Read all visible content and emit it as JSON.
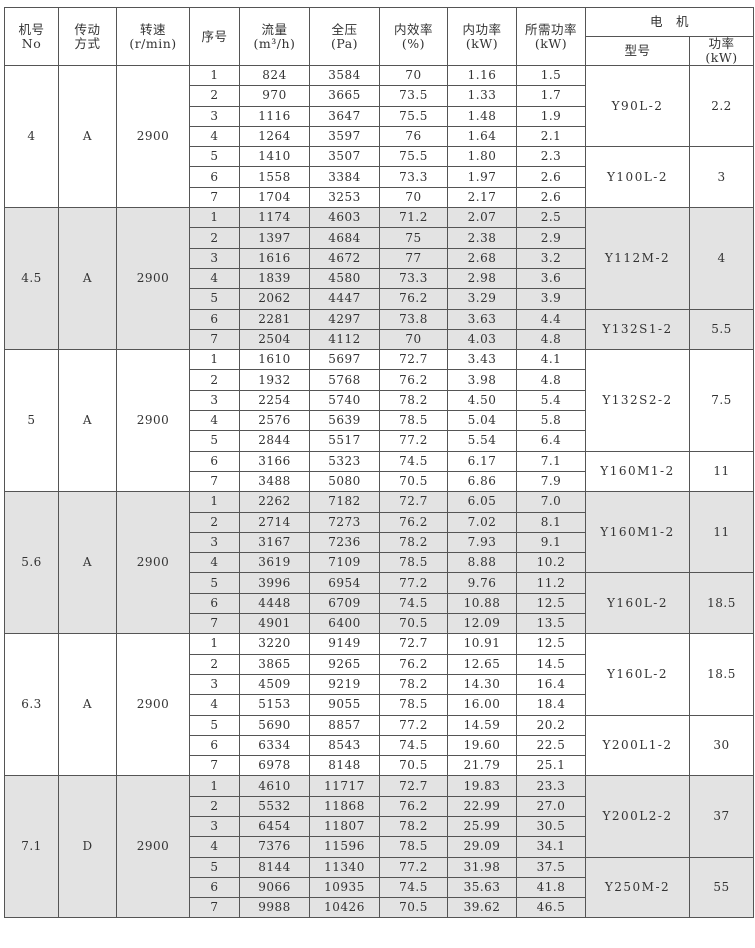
{
  "headers": {
    "no": [
      "机号",
      "No"
    ],
    "drive": [
      "传动",
      "方式"
    ],
    "speed": [
      "转速",
      "(r/min)"
    ],
    "seq": "序号",
    "flow": [
      "流量",
      "(m³/h)"
    ],
    "pressure": [
      "全压",
      "(Pa)"
    ],
    "eff": [
      "内效率",
      "(%)"
    ],
    "inpower": [
      "内功率",
      "(kW)"
    ],
    "reqpower": [
      "所需功率",
      "(kW)"
    ],
    "motor": "电　机",
    "motor_model": "型号",
    "motor_power": [
      "功率",
      "(kW)"
    ]
  },
  "groups": [
    {
      "no": "4",
      "drive": "A",
      "speed": "2900",
      "rows": [
        [
          "1",
          "824",
          "3584",
          "70",
          "1.16",
          "1.5"
        ],
        [
          "2",
          "970",
          "3665",
          "73.5",
          "1.33",
          "1.7"
        ],
        [
          "3",
          "1116",
          "3647",
          "75.5",
          "1.48",
          "1.9"
        ],
        [
          "4",
          "1264",
          "3597",
          "76",
          "1.64",
          "2.1"
        ],
        [
          "5",
          "1410",
          "3507",
          "75.5",
          "1.80",
          "2.3"
        ],
        [
          "6",
          "1558",
          "3384",
          "73.3",
          "1.97",
          "2.6"
        ],
        [
          "7",
          "1704",
          "3253",
          "70",
          "2.17",
          "2.6"
        ]
      ],
      "motors": [
        {
          "model": "Y90L-2",
          "power": "2.2",
          "rows": 4
        },
        {
          "model": "Y100L-2",
          "power": "3",
          "rows": 3
        }
      ]
    },
    {
      "no": "4.5",
      "drive": "A",
      "speed": "2900",
      "rows": [
        [
          "1",
          "1174",
          "4603",
          "71.2",
          "2.07",
          "2.5"
        ],
        [
          "2",
          "1397",
          "4684",
          "75",
          "2.38",
          "2.9"
        ],
        [
          "3",
          "1616",
          "4672",
          "77",
          "2.68",
          "3.2"
        ],
        [
          "4",
          "1839",
          "4580",
          "73.3",
          "2.98",
          "3.6"
        ],
        [
          "5",
          "2062",
          "4447",
          "76.2",
          "3.29",
          "3.9"
        ],
        [
          "6",
          "2281",
          "4297",
          "73.8",
          "3.63",
          "4.4"
        ],
        [
          "7",
          "2504",
          "4112",
          "70",
          "4.03",
          "4.8"
        ]
      ],
      "motors": [
        {
          "model": "Y112M-2",
          "power": "4",
          "rows": 5
        },
        {
          "model": "Y132S1-2",
          "power": "5.5",
          "rows": 2
        }
      ]
    },
    {
      "no": "5",
      "drive": "A",
      "speed": "2900",
      "rows": [
        [
          "1",
          "1610",
          "5697",
          "72.7",
          "3.43",
          "4.1"
        ],
        [
          "2",
          "1932",
          "5768",
          "76.2",
          "3.98",
          "4.8"
        ],
        [
          "3",
          "2254",
          "5740",
          "78.2",
          "4.50",
          "5.4"
        ],
        [
          "4",
          "2576",
          "5639",
          "78.5",
          "5.04",
          "5.8"
        ],
        [
          "5",
          "2844",
          "5517",
          "77.2",
          "5.54",
          "6.4"
        ],
        [
          "6",
          "3166",
          "5323",
          "74.5",
          "6.17",
          "7.1"
        ],
        [
          "7",
          "3488",
          "5080",
          "70.5",
          "6.86",
          "7.9"
        ]
      ],
      "motors": [
        {
          "model": "Y132S2-2",
          "power": "7.5",
          "rows": 5
        },
        {
          "model": "Y160M1-2",
          "power": "11",
          "rows": 2
        }
      ]
    },
    {
      "no": "5.6",
      "drive": "A",
      "speed": "2900",
      "rows": [
        [
          "1",
          "2262",
          "7182",
          "72.7",
          "6.05",
          "7.0"
        ],
        [
          "2",
          "2714",
          "7273",
          "76.2",
          "7.02",
          "8.1"
        ],
        [
          "3",
          "3167",
          "7236",
          "78.2",
          "7.93",
          "9.1"
        ],
        [
          "4",
          "3619",
          "7109",
          "78.5",
          "8.88",
          "10.2"
        ],
        [
          "5",
          "3996",
          "6954",
          "77.2",
          "9.76",
          "11.2"
        ],
        [
          "6",
          "4448",
          "6709",
          "74.5",
          "10.88",
          "12.5"
        ],
        [
          "7",
          "4901",
          "6400",
          "70.5",
          "12.09",
          "13.5"
        ]
      ],
      "motors": [
        {
          "model": "Y160M1-2",
          "power": "11",
          "rows": 4
        },
        {
          "model": "Y160L-2",
          "power": "18.5",
          "rows": 3
        }
      ]
    },
    {
      "no": "6.3",
      "drive": "A",
      "speed": "2900",
      "rows": [
        [
          "1",
          "3220",
          "9149",
          "72.7",
          "10.91",
          "12.5"
        ],
        [
          "2",
          "3865",
          "9265",
          "76.2",
          "12.65",
          "14.5"
        ],
        [
          "3",
          "4509",
          "9219",
          "78.2",
          "14.30",
          "16.4"
        ],
        [
          "4",
          "5153",
          "9055",
          "78.5",
          "16.00",
          "18.4"
        ],
        [
          "5",
          "5690",
          "8857",
          "77.2",
          "14.59",
          "20.2"
        ],
        [
          "6",
          "6334",
          "8543",
          "74.5",
          "19.60",
          "22.5"
        ],
        [
          "7",
          "6978",
          "8148",
          "70.5",
          "21.79",
          "25.1"
        ]
      ],
      "motors": [
        {
          "model": "Y160L-2",
          "power": "18.5",
          "rows": 4
        },
        {
          "model": "Y200L1-2",
          "power": "30",
          "rows": 3
        }
      ]
    },
    {
      "no": "7.1",
      "drive": "D",
      "speed": "2900",
      "rows": [
        [
          "1",
          "4610",
          "11717",
          "72.7",
          "19.83",
          "23.3"
        ],
        [
          "2",
          "5532",
          "11868",
          "76.2",
          "22.99",
          "27.0"
        ],
        [
          "3",
          "6454",
          "11807",
          "78.2",
          "25.99",
          "30.5"
        ],
        [
          "4",
          "7376",
          "11596",
          "78.5",
          "29.09",
          "34.1"
        ],
        [
          "5",
          "8144",
          "11340",
          "77.2",
          "31.98",
          "37.5"
        ],
        [
          "6",
          "9066",
          "10935",
          "74.5",
          "35.63",
          "41.8"
        ],
        [
          "7",
          "9988",
          "10426",
          "70.5",
          "39.62",
          "46.5"
        ]
      ],
      "motors": [
        {
          "model": "Y200L2-2",
          "power": "37",
          "rows": 4
        },
        {
          "model": "Y250M-2",
          "power": "55",
          "rows": 3
        }
      ]
    }
  ],
  "colors": {
    "shade": "#e3e3e3",
    "border": "#555555"
  }
}
